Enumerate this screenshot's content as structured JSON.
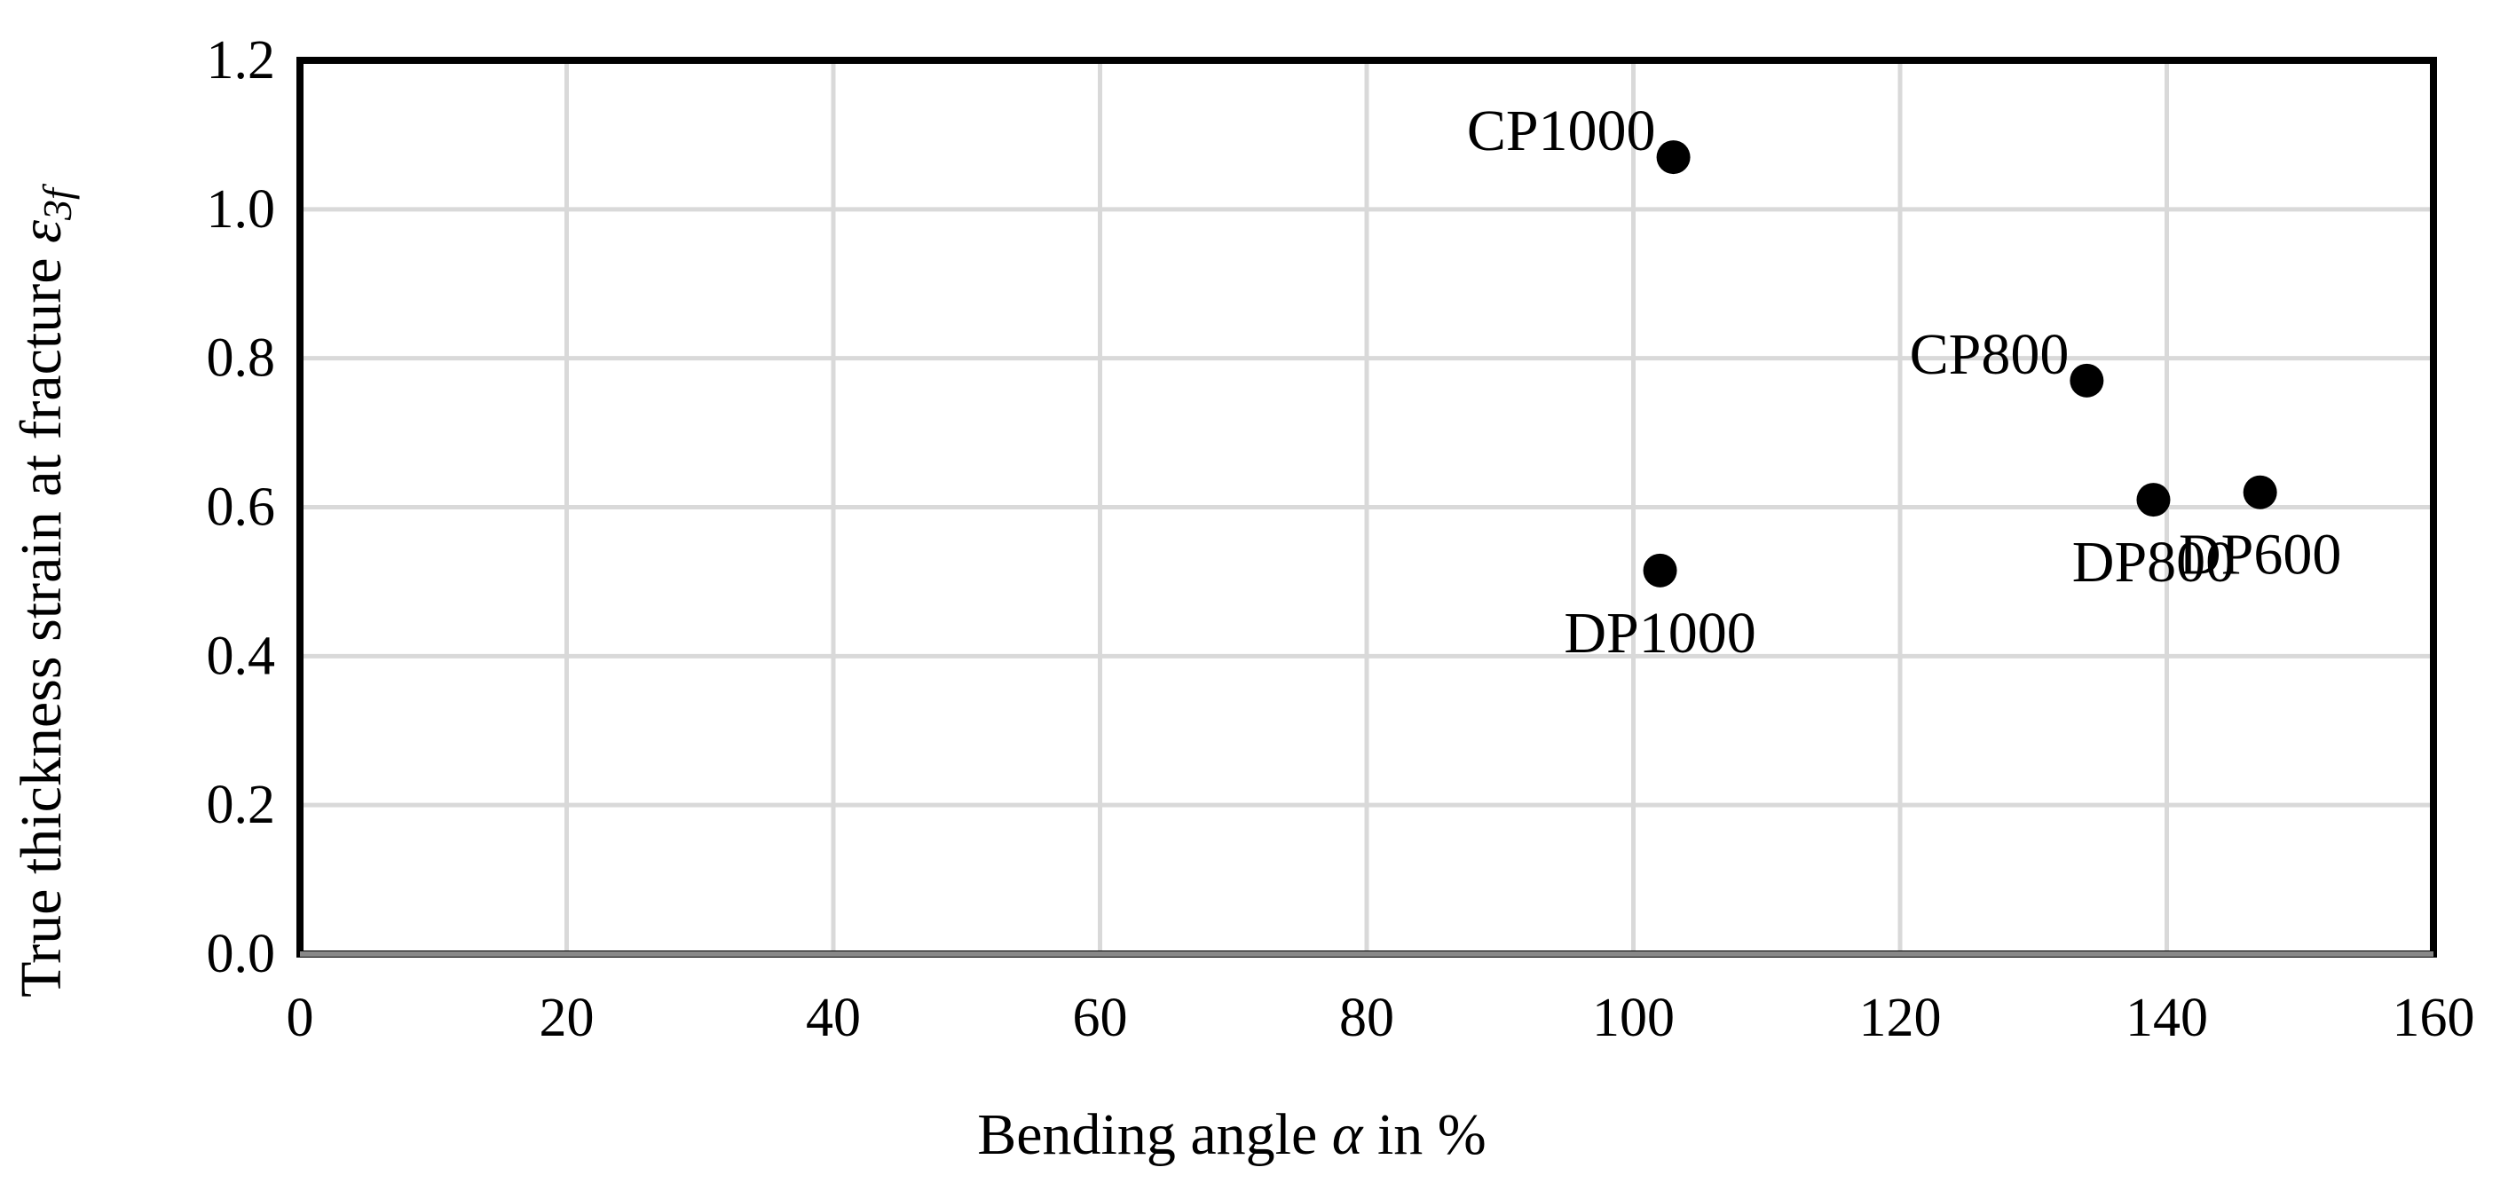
{
  "chart_data": {
    "type": "scatter",
    "xlabel": {
      "prefix": "Bending angle ",
      "symbol": "α",
      "suffix": " in %"
    },
    "ylabel": {
      "prefix": "True thickness strain at fracture ",
      "symbol": "ε",
      "subscript": "3f"
    },
    "xlim": [
      0,
      160
    ],
    "ylim": [
      0,
      1.2
    ],
    "x_ticks": [
      "0",
      "20",
      "40",
      "60",
      "80",
      "100",
      "120",
      "140",
      "160"
    ],
    "y_ticks": [
      "0.0",
      "0.2",
      "0.4",
      "0.6",
      "0.8",
      "1.0",
      "1.2"
    ],
    "grid": true,
    "points": [
      {
        "label": "CP1000",
        "x": 103,
        "y": 1.07,
        "label_position": "left"
      },
      {
        "label": "CP800",
        "x": 134,
        "y": 0.77,
        "label_position": "left"
      },
      {
        "label": "DP800",
        "x": 139,
        "y": 0.61,
        "label_position": "below"
      },
      {
        "label": "DP600",
        "x": 147,
        "y": 0.62,
        "label_position": "below"
      },
      {
        "label": "DP1000",
        "x": 102,
        "y": 0.515,
        "label_position": "below"
      }
    ],
    "colors": {
      "points": "#000000",
      "grid": "#d9d9d9",
      "frame": "#000000"
    }
  }
}
